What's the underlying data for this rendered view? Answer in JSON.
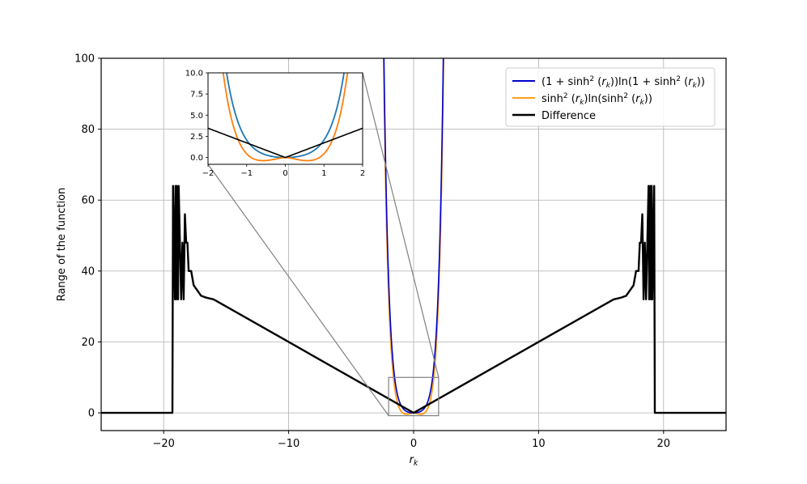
{
  "chart_data": [
    {
      "type": "line",
      "title": "",
      "xlabel": "r_k",
      "ylabel": "Range of the function",
      "xlim": [
        -25,
        25
      ],
      "ylim": [
        -5,
        100
      ],
      "grid": true,
      "legend_position": "top-right",
      "xticks": [
        -20,
        -10,
        0,
        10,
        20
      ],
      "xtick_labels": [
        "−20",
        "−10",
        "0",
        "10",
        "20"
      ],
      "yticks": [
        0,
        20,
        40,
        60,
        80,
        100
      ],
      "ytick_labels": [
        "0",
        "20",
        "40",
        "60",
        "80",
        "100"
      ],
      "series": [
        {
          "name": "(1 + sinh² (r_k))ln(1 + sinh² (r_k))",
          "color": "#0000cc",
          "function": "(1+sinh(x)^2)*ln(1+sinh(x)^2)"
        },
        {
          "name": "sinh² (r_k)ln(sinh² (r_k))",
          "color": "#ff9f1c",
          "function": "sinh(x)^2*ln(sinh(x)^2)"
        },
        {
          "name": "Difference",
          "color": "#000000",
          "x": [
            -25,
            -19.3,
            -19.25,
            -19.1,
            -19.05,
            -19.0,
            -18.95,
            -18.85,
            -18.8,
            -18.7,
            -18.6,
            -18.5,
            -18.4,
            -18.3,
            -18.2,
            -18.1,
            -18.0,
            -17.9,
            -17.8,
            -17.6,
            -17.4,
            -17.2,
            -17.0,
            -16.6,
            -16.0,
            -10,
            -5,
            0,
            5,
            10,
            16.0,
            16.6,
            17.0,
            17.2,
            17.4,
            17.6,
            17.8,
            17.9,
            18.0,
            18.1,
            18.2,
            18.3,
            18.4,
            18.5,
            18.6,
            18.7,
            18.8,
            18.85,
            18.95,
            19.0,
            19.05,
            19.1,
            19.25,
            19.3,
            25
          ],
          "y": [
            0,
            0,
            64,
            32,
            64,
            32,
            64,
            32,
            64,
            48,
            32,
            48,
            32,
            56,
            48,
            48,
            40,
            40,
            40,
            36,
            35,
            34,
            33,
            32.5,
            32,
            20,
            10,
            0,
            10,
            20,
            32,
            32.5,
            33,
            34,
            35,
            36,
            40,
            40,
            40,
            48,
            48,
            56,
            32,
            48,
            32,
            48,
            64,
            32,
            64,
            32,
            64,
            32,
            64,
            0,
            0
          ]
        }
      ]
    },
    {
      "type": "line",
      "title": "",
      "xlim": [
        -2,
        2
      ],
      "ylim": [
        -0.8,
        10
      ],
      "grid": false,
      "xticks": [
        -2,
        -1,
        0,
        1,
        2
      ],
      "xtick_labels": [
        "−2",
        "−1",
        "0",
        "1",
        "2"
      ],
      "yticks": [
        0,
        2.5,
        5,
        7.5,
        10
      ],
      "ytick_labels": [
        "0.0",
        "2.5",
        "5.0",
        "7.5",
        "10.0"
      ],
      "series": [
        {
          "color": "#1f77b4",
          "function": "(1+sinh(x)^2)*ln(1+sinh(x)^2)"
        },
        {
          "color": "#ff7f0e",
          "function": "sinh(x)^2*ln(sinh(x)^2)"
        },
        {
          "color": "#000000",
          "function": "|x|*1.73"
        }
      ]
    }
  ]
}
